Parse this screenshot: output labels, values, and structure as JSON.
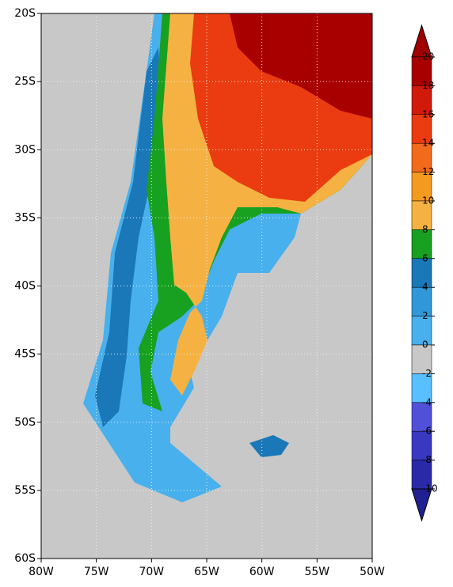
{
  "map": {
    "lon_range": [
      -80,
      -50
    ],
    "lat_range": [
      -20,
      -60
    ],
    "lon_ticks": [
      {
        "value": -80,
        "label": "80W"
      },
      {
        "value": -75,
        "label": "75W"
      },
      {
        "value": -70,
        "label": "70W"
      },
      {
        "value": -65,
        "label": "65W"
      },
      {
        "value": -60,
        "label": "60W"
      },
      {
        "value": -55,
        "label": "55W"
      },
      {
        "value": -50,
        "label": "50W"
      }
    ],
    "lat_ticks": [
      {
        "value": -20,
        "label": "20S"
      },
      {
        "value": -25,
        "label": "25S"
      },
      {
        "value": -30,
        "label": "30S"
      },
      {
        "value": -35,
        "label": "35S"
      },
      {
        "value": -40,
        "label": "40S"
      },
      {
        "value": -45,
        "label": "45S"
      },
      {
        "value": -50,
        "label": "50S"
      },
      {
        "value": -55,
        "label": "55S"
      },
      {
        "value": -60,
        "label": "60S"
      }
    ],
    "colorbar": {
      "levels": [
        20,
        18,
        16,
        14,
        12,
        10,
        8,
        6,
        4,
        2,
        0,
        -2,
        -4,
        -6,
        -8,
        -10
      ],
      "colors": [
        "#a00000",
        "#a80000",
        "#d21a0c",
        "#ea3c10",
        "#f26a1c",
        "#f59a20",
        "#f5b242",
        "#18a020",
        "#1a78b8",
        "#3098d8",
        "#48b0ec",
        "#c8c8c8",
        "#58c0ff",
        "#5050d8",
        "#3838c0",
        "#2a2aa8",
        "#202090"
      ]
    }
  }
}
